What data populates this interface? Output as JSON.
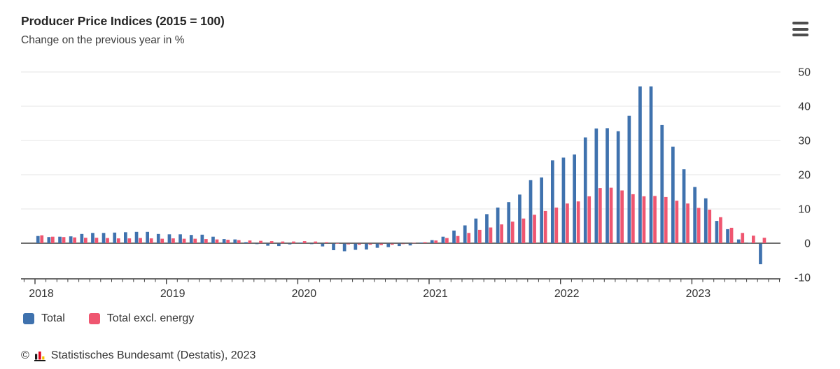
{
  "header": {
    "title": "Producer Price Indices (2015 = 100)",
    "subtitle": "Change on the previous year in %"
  },
  "menu": {
    "icon": "hamburger-menu-icon"
  },
  "legend": [
    {
      "label": "Total",
      "color": "#3f72ae"
    },
    {
      "label": "Total excl. energy",
      "color": "#ef5670"
    }
  ],
  "footer": {
    "copyright": "©",
    "logo": "destatis-bars-logo",
    "logo_colors": [
      "#1a1a1a",
      "#e10019",
      "#f5c400"
    ],
    "text": "Statistisches Bundesamt (Destatis), 2023"
  },
  "chart_data": {
    "type": "bar",
    "title": "Producer Price Indices (2015 = 100)",
    "subtitle": "Change on the previous year in %",
    "xlabel": "",
    "ylabel": "Change on the previous year in %",
    "start_month": "2018-01",
    "months_count": 67,
    "x_tick_years": [
      "2018",
      "2019",
      "2020",
      "2021",
      "2022",
      "2023"
    ],
    "y_ticks": [
      50,
      40,
      30,
      20,
      10,
      0,
      -10
    ],
    "ylim": [
      -10,
      50
    ],
    "grid": "horizontal",
    "legend_position": "bottom-left",
    "axis_color": "#3f3f3f",
    "gridline_color": "#e5e5e5",
    "series": [
      {
        "name": "Total",
        "color": "#3f72ae",
        "values": [
          2.1,
          1.8,
          1.9,
          2.0,
          2.7,
          3.0,
          3.0,
          3.1,
          3.2,
          3.3,
          3.3,
          2.7,
          2.6,
          2.6,
          2.4,
          2.5,
          1.9,
          1.2,
          1.1,
          0.3,
          -0.1,
          -0.6,
          -0.7,
          -0.2,
          0.2,
          -0.1,
          -0.8,
          -1.9,
          -2.2,
          -1.8,
          -1.7,
          -1.2,
          -1.0,
          -0.7,
          -0.5,
          0.2,
          0.9,
          1.9,
          3.7,
          5.2,
          7.2,
          8.5,
          10.4,
          12.0,
          14.2,
          18.4,
          19.2,
          24.2,
          25.0,
          25.9,
          30.9,
          33.5,
          33.6,
          32.7,
          37.2,
          45.8,
          45.8,
          34.5,
          28.2,
          21.6,
          16.4,
          13.1,
          6.5,
          4.1,
          1.1,
          0.1,
          -6.0
        ]
      },
      {
        "name": "Total excl. energy",
        "color": "#ef5670",
        "values": [
          2.3,
          1.9,
          1.8,
          1.7,
          1.6,
          1.6,
          1.5,
          1.4,
          1.4,
          1.5,
          1.4,
          1.3,
          1.4,
          1.3,
          1.3,
          1.2,
          1.1,
          1.0,
          0.9,
          0.8,
          0.7,
          0.6,
          0.5,
          0.5,
          0.6,
          0.5,
          0.3,
          0.0,
          -0.2,
          -0.3,
          -0.3,
          -0.4,
          -0.3,
          -0.1,
          0.1,
          0.3,
          0.8,
          1.5,
          2.1,
          3.0,
          3.9,
          4.6,
          5.5,
          6.3,
          7.2,
          8.3,
          9.4,
          10.4,
          11.6,
          12.2,
          13.7,
          16.1,
          16.2,
          15.4,
          14.3,
          13.7,
          13.8,
          13.5,
          12.4,
          11.6,
          10.3,
          9.8,
          7.6,
          4.5,
          3.0,
          2.2,
          1.6
        ]
      }
    ]
  }
}
